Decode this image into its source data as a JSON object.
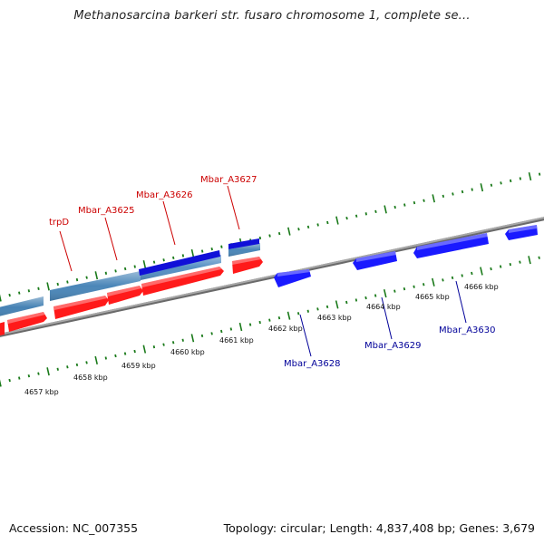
{
  "title": "Methanosarcina barkeri str. fusaro chromosome 1, complete se...",
  "footer": {
    "accession": "Accession: NC_007355",
    "topology": "Topology: circular; Length: 4,837,408 bp; Genes: 3,679"
  },
  "colors": {
    "backbone": "#8a8a8a",
    "forward_gene": "#ff1a1a",
    "reverse_gene": "#1a1aff",
    "forward_label": "#cc0000",
    "reverse_label": "#000099",
    "cds_bar": "#4682b4",
    "tick": "#1a7a1a"
  },
  "ruler": {
    "kbp_labels": [
      "4657 kbp",
      "4658 kbp",
      "4659 kbp",
      "4660 kbp",
      "4661 kbp",
      "4662 kbp",
      "4663 kbp",
      "4664 kbp",
      "4665 kbp",
      "4666 kbp"
    ]
  },
  "gene_labels": {
    "forward": [
      "trpD",
      "Mbar_A3625",
      "Mbar_A3626",
      "Mbar_A3627"
    ],
    "reverse": [
      "Mbar_A3628",
      "Mbar_A3629",
      "Mbar_A3630"
    ]
  }
}
